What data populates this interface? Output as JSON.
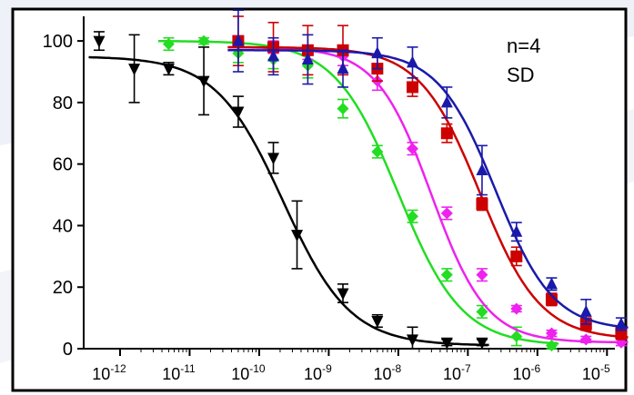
{
  "chart_data": {
    "type": "scatter",
    "title": "",
    "xlabel": "",
    "ylabel": "",
    "x_scale": "log",
    "xlim": [
      3e-13,
      1.3e-05
    ],
    "ylim": [
      0,
      108
    ],
    "x_ticks": [
      1e-12,
      1e-11,
      1e-10,
      1e-09,
      1e-08,
      1e-07,
      1e-06,
      1e-05
    ],
    "x_tick_labels": [
      {
        "base": "10",
        "exp": "-12"
      },
      {
        "base": "10",
        "exp": "-11"
      },
      {
        "base": "10",
        "exp": "-10"
      },
      {
        "base": "10",
        "exp": "-9"
      },
      {
        "base": "10",
        "exp": "-8"
      },
      {
        "base": "10",
        "exp": "-7"
      },
      {
        "base": "10",
        "exp": "-6"
      },
      {
        "base": "10",
        "exp": "-5"
      }
    ],
    "y_ticks": [
      0,
      20,
      40,
      60,
      80,
      100
    ],
    "y_tick_labels": [
      "0",
      "20",
      "40",
      "60",
      "80",
      "100"
    ],
    "grid": false,
    "annotations": [
      "n=4",
      "SD"
    ],
    "series": [
      {
        "color": "#000000",
        "marker": "triangle-down",
        "x": [
          5e-13,
          1.6e-12,
          5e-12,
          1.6e-11,
          5e-11,
          1.6e-10,
          3.5e-10,
          1.6e-09,
          5e-09,
          1.6e-08,
          5e-08,
          1.6e-07
        ],
        "y": [
          100,
          91,
          91,
          87,
          77,
          62,
          37,
          18,
          9,
          3,
          2,
          2
        ],
        "err": [
          3,
          11,
          2,
          11,
          5,
          5,
          11,
          3,
          2,
          4,
          1,
          1
        ],
        "fit": {
          "top": 95,
          "bottom": 1,
          "ec50": 2.2e-10,
          "hill": 0.9
        }
      },
      {
        "color": "#22dd22",
        "marker": "diamond",
        "x": [
          5e-12,
          1.6e-11,
          5e-11,
          1.6e-10,
          5e-10,
          1.6e-09,
          5e-09,
          1.6e-08,
          5e-08,
          1.6e-07,
          5e-07,
          1.6e-06
        ],
        "y": [
          99,
          100,
          96,
          94,
          92,
          78,
          64,
          43,
          24,
          12,
          4,
          1
        ],
        "err": [
          2,
          1,
          3,
          3,
          4,
          3,
          2,
          2,
          2,
          2,
          3,
          1
        ],
        "fit": {
          "top": 100,
          "bottom": 1,
          "ec50": 1e-08,
          "hill": 0.95
        }
      },
      {
        "color": "#ee22ee",
        "marker": "diamond",
        "x": [
          5e-11,
          1.6e-10,
          5e-10,
          1.6e-09,
          5e-09,
          1.6e-08,
          5e-08,
          1.6e-07,
          5e-07,
          1.6e-06,
          5e-06,
          1.6e-05
        ],
        "y": [
          99,
          98,
          96,
          95,
          87,
          65,
          44,
          24,
          13,
          5,
          3,
          2
        ],
        "err": [
          2,
          2,
          2,
          3,
          3,
          2,
          2,
          2,
          1,
          1,
          1,
          1
        ],
        "fit": {
          "top": 98,
          "bottom": 2,
          "ec50": 3e-08,
          "hill": 1.1
        }
      },
      {
        "color": "#cc0000",
        "marker": "square",
        "x": [
          5e-11,
          1.6e-10,
          5e-10,
          1.6e-09,
          5e-09,
          1.6e-08,
          5e-08,
          1.6e-07,
          5e-07,
          1.6e-06,
          5e-06,
          1.6e-05
        ],
        "y": [
          100,
          98,
          97,
          97,
          91,
          85,
          70,
          47,
          30,
          16,
          8,
          5
        ],
        "err": [
          8,
          8,
          8,
          8,
          4,
          3,
          3,
          2,
          3,
          2,
          2,
          2
        ],
        "fit": {
          "top": 98,
          "bottom": 3,
          "ec50": 1.5e-07,
          "hill": 1.0
        }
      },
      {
        "color": "#1a1aaa",
        "marker": "triangle-up",
        "x": [
          5e-11,
          1.6e-10,
          5e-10,
          1.6e-09,
          5e-09,
          1.6e-08,
          5e-08,
          1.6e-07,
          5e-07,
          1.6e-06,
          5e-06,
          1.6e-05
        ],
        "y": [
          100,
          95,
          94,
          91,
          96,
          93,
          80,
          58,
          38,
          21,
          12,
          8
        ],
        "err": [
          10,
          6,
          8,
          6,
          5,
          5,
          5,
          8,
          3,
          2,
          4,
          2
        ],
        "fit": {
          "top": 97,
          "bottom": 6,
          "ec50": 2.5e-07,
          "hill": 1.05
        }
      }
    ]
  }
}
